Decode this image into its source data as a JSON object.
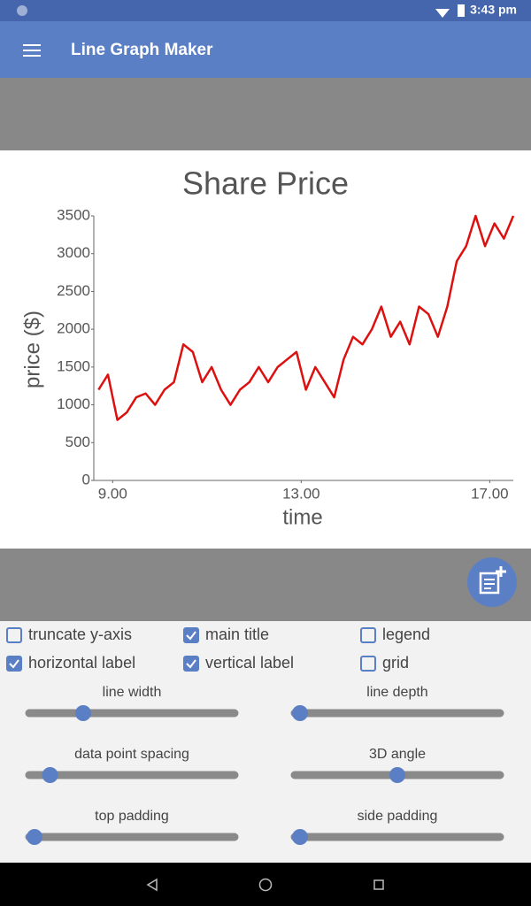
{
  "status_bar": {
    "time": "3:43 pm"
  },
  "app_bar": {
    "title": "Line Graph Maker"
  },
  "chart_data": {
    "type": "line",
    "title": "Share Price",
    "x_label": "time",
    "y_label": "price ($)",
    "color": "#dd1010",
    "x": [
      8.7,
      8.9,
      9.1,
      9.3,
      9.5,
      9.7,
      9.9,
      10.1,
      10.3,
      10.5,
      10.7,
      10.9,
      11.1,
      11.3,
      11.5,
      11.7,
      11.9,
      12.1,
      12.3,
      12.5,
      12.7,
      12.9,
      13.1,
      13.3,
      13.5,
      13.7,
      13.9,
      14.1,
      14.3,
      14.5,
      14.7,
      14.9,
      15.1,
      15.3,
      15.5,
      15.7,
      15.9,
      16.1,
      16.3,
      16.5,
      16.7,
      16.9,
      17.1,
      17.3,
      17.5
    ],
    "values": [
      1200,
      1400,
      800,
      900,
      1100,
      1150,
      1000,
      1200,
      1300,
      1800,
      1700,
      1300,
      1500,
      1200,
      1000,
      1200,
      1300,
      1500,
      1300,
      1500,
      1600,
      1700,
      1200,
      1500,
      1300,
      1100,
      1600,
      1900,
      1800,
      2000,
      2300,
      1900,
      2100,
      1800,
      2300,
      2200,
      1900,
      2300,
      2900,
      3100,
      3500,
      3100,
      3400,
      3200,
      3500
    ],
    "xlim": [
      8.6,
      17.5
    ],
    "ylim": [
      0,
      3500
    ],
    "xticks": [
      {
        "value": 9,
        "label": "9.00"
      },
      {
        "value": 13,
        "label": "13.00"
      },
      {
        "value": 17,
        "label": "17.00"
      }
    ],
    "yticks": [
      0,
      500,
      1000,
      1500,
      2000,
      2500,
      3000,
      3500
    ],
    "grid": false
  },
  "checkboxes": [
    {
      "label": "truncate y-axis",
      "checked": false
    },
    {
      "label": "main title",
      "checked": true
    },
    {
      "label": "legend",
      "checked": false
    },
    {
      "label": "horizontal label",
      "checked": true
    },
    {
      "label": "vertical label",
      "checked": true
    },
    {
      "label": "grid",
      "checked": false
    }
  ],
  "sliders": [
    {
      "label": "line width",
      "position": 0.25
    },
    {
      "label": "line depth",
      "position": 0
    },
    {
      "label": "data point spacing",
      "position": 0.08
    },
    {
      "label": "3D angle",
      "position": 0.5
    },
    {
      "label": "top padding",
      "position": 0
    },
    {
      "label": "side padding",
      "position": 0
    }
  ]
}
